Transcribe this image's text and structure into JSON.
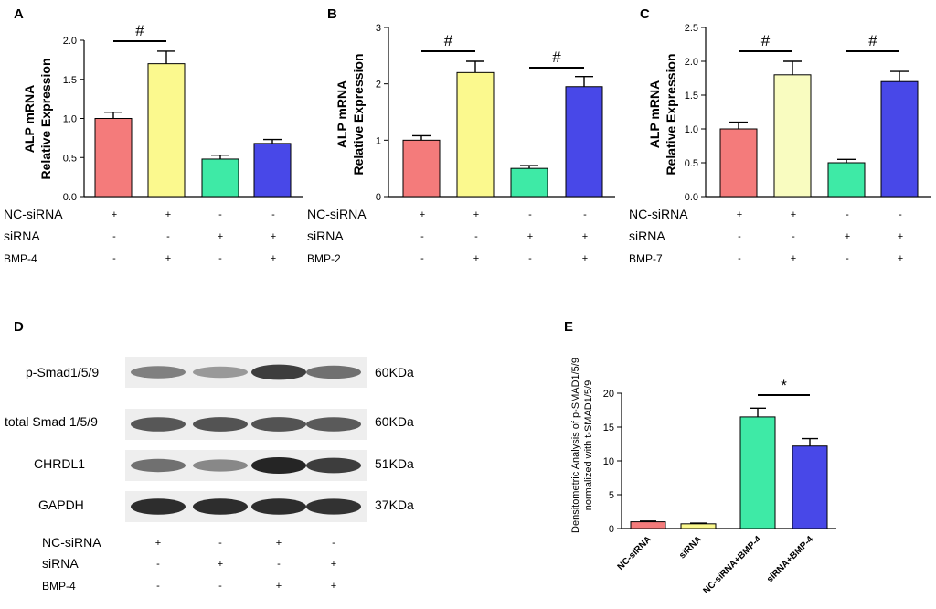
{
  "panels_abc": [
    {
      "letter": "A",
      "ylabel_lines": [
        "ALP mRNA",
        "Relative Expression"
      ],
      "ylim": [
        0,
        2.0
      ],
      "ticks": [
        "0.0",
        "0.5",
        "1.0",
        "1.5",
        "2.0"
      ],
      "tick_values": [
        0,
        0.5,
        1.0,
        1.5,
        2.0
      ],
      "values": [
        1.0,
        1.7,
        0.48,
        0.68
      ],
      "errors": [
        0.08,
        0.16,
        0.05,
        0.05
      ],
      "colors": [
        "#f47b7b",
        "#fbf98e",
        "#3eeaa6",
        "#4848e8"
      ],
      "sig": [
        {
          "from": 0,
          "to": 1,
          "label": "#"
        }
      ],
      "rows": [
        {
          "label": "NC-siRNA",
          "signs": [
            "+",
            "+",
            "-",
            "-"
          ]
        },
        {
          "label": "siRNA",
          "signs": [
            "-",
            "-",
            "+",
            "+"
          ]
        },
        {
          "label": "BMP-4",
          "signs": [
            "-",
            "+",
            "-",
            "+"
          ]
        }
      ]
    },
    {
      "letter": "B",
      "ylabel_lines": [
        "ALP mRNA",
        "Relative Expression"
      ],
      "ylim": [
        0,
        3
      ],
      "ticks": [
        "0",
        "1",
        "2",
        "3"
      ],
      "tick_values": [
        0,
        1,
        2,
        3
      ],
      "values": [
        1.0,
        2.2,
        0.5,
        1.95
      ],
      "errors": [
        0.08,
        0.2,
        0.05,
        0.18
      ],
      "colors": [
        "#f47b7b",
        "#fbf98e",
        "#3eeaa6",
        "#4848e8"
      ],
      "sig": [
        {
          "from": 0,
          "to": 1,
          "label": "#"
        },
        {
          "from": 2,
          "to": 3,
          "label": "#"
        }
      ],
      "rows": [
        {
          "label": "NC-siRNA",
          "signs": [
            "+",
            "+",
            "-",
            "-"
          ]
        },
        {
          "label": "siRNA",
          "signs": [
            "-",
            "-",
            "+",
            "+"
          ]
        },
        {
          "label": "BMP-2",
          "signs": [
            "-",
            "+",
            "-",
            "+"
          ]
        }
      ]
    },
    {
      "letter": "C",
      "ylabel_lines": [
        "ALP mRNA",
        "Relative Expression"
      ],
      "ylim": [
        0,
        2.5
      ],
      "ticks": [
        "0.0",
        "0.5",
        "1.0",
        "1.5",
        "2.0",
        "2.5"
      ],
      "tick_values": [
        0,
        0.5,
        1.0,
        1.5,
        2.0,
        2.5
      ],
      "values": [
        1.0,
        1.8,
        0.5,
        1.7
      ],
      "errors": [
        0.1,
        0.2,
        0.05,
        0.15
      ],
      "colors": [
        "#f47b7b",
        "#f9fcc0",
        "#3eeaa6",
        "#4848e8"
      ],
      "sig": [
        {
          "from": 0,
          "to": 1,
          "label": "#"
        },
        {
          "from": 2,
          "to": 3,
          "label": "#"
        }
      ],
      "rows": [
        {
          "label": "NC-siRNA",
          "signs": [
            "+",
            "+",
            "-",
            "-"
          ]
        },
        {
          "label": "siRNA",
          "signs": [
            "-",
            "-",
            "+",
            "+"
          ]
        },
        {
          "label": "BMP-7",
          "signs": [
            "-",
            "+",
            "-",
            "+"
          ]
        }
      ]
    }
  ],
  "blot": {
    "letter": "D",
    "bands": [
      {
        "label": "p-Smad1/5/9",
        "size": "60KDa",
        "intensity": [
          0.45,
          0.3,
          0.85,
          0.55
        ]
      },
      {
        "label": "total Smad 1/5/9",
        "size": "60KDa",
        "intensity": [
          0.7,
          0.72,
          0.72,
          0.68
        ]
      },
      {
        "label": "CHRDL1",
        "size": "51KDa",
        "intensity": [
          0.55,
          0.4,
          1.0,
          0.85
        ]
      },
      {
        "label": "GAPDH",
        "size": "37KDa",
        "intensity": [
          0.95,
          0.95,
          0.95,
          0.92
        ]
      }
    ],
    "rows": [
      {
        "label": "NC-siRNA",
        "signs": [
          "+",
          "-",
          "+",
          "-"
        ]
      },
      {
        "label": "siRNA",
        "signs": [
          "-",
          "+",
          "-",
          "+"
        ]
      },
      {
        "label": "BMP-4",
        "signs": [
          "-",
          "-",
          "+",
          "+"
        ]
      }
    ]
  },
  "chart_data": {
    "type": "bar",
    "letter": "E",
    "ylabel_lines": [
      "Densitometric Analysis of p-SMAD1/5/9",
      "normalized with t-SMAD1/5/9"
    ],
    "categories": [
      "NC-siRNA",
      "siRNA",
      "NC-siRNA+BMP-4",
      "siRNA+BMP-4"
    ],
    "values": [
      1.0,
      0.7,
      16.5,
      12.2
    ],
    "errors": [
      0.1,
      0.1,
      1.3,
      1.1
    ],
    "colors": [
      "#f47b7b",
      "#fbf98e",
      "#3eeaa6",
      "#4848e8"
    ],
    "ylim": [
      0,
      20
    ],
    "ticks": [
      "0",
      "5",
      "10",
      "15",
      "20"
    ],
    "tick_values": [
      0,
      5,
      10,
      15,
      20
    ],
    "sig": [
      {
        "from": 2,
        "to": 3,
        "label": "*"
      }
    ]
  }
}
